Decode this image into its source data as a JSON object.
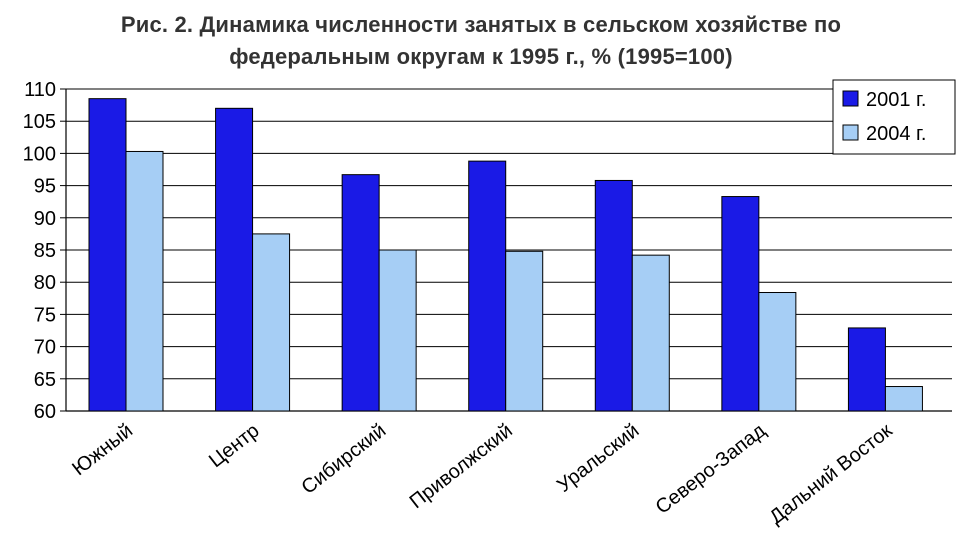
{
  "chart_data": {
    "type": "bar",
    "title_line1": "Рис. 2. Динамика численности занятых в сельском хозяйстве по",
    "title_line2": "федеральным округам к 1995 г., % (1995=100)",
    "categories": [
      "Южный",
      "Центр",
      "Сибирский",
      "Приволжский",
      "Уральский",
      "Северо-Запад",
      "Дальний Восток"
    ],
    "series": [
      {
        "name": "2001 г.",
        "color": "#1a1ae6",
        "values": [
          108.5,
          107.0,
          96.7,
          98.8,
          95.8,
          93.3,
          72.9
        ]
      },
      {
        "name": "2004 г.",
        "color": "#a6cef5",
        "values": [
          100.3,
          87.5,
          85.0,
          84.8,
          84.2,
          78.4,
          63.8
        ]
      }
    ],
    "ylim": [
      60,
      110
    ],
    "yticks": [
      "60",
      "65",
      "70",
      "75",
      "80",
      "85",
      "90",
      "95",
      "100",
      "105",
      "110"
    ],
    "grid": true,
    "legend_position": "top-right"
  }
}
